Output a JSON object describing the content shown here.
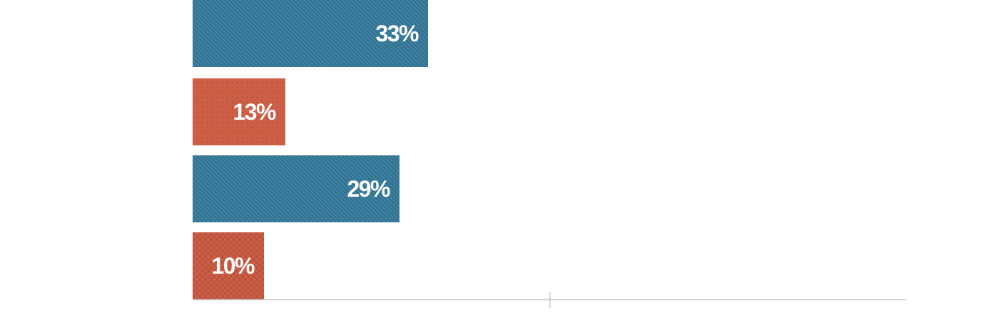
{
  "chart_data": {
    "type": "bar",
    "orientation": "horizontal",
    "categories": [
      "",
      "",
      "",
      ""
    ],
    "values": [
      33,
      13,
      29,
      10
    ],
    "value_labels": [
      "33%",
      "13%",
      "29%",
      "10%"
    ],
    "xlim": [
      0,
      100
    ],
    "title": "",
    "xlabel": "",
    "ylabel": "",
    "grid": false,
    "bars": [
      {
        "color": "#2f7394",
        "pattern": "diagonal-lines"
      },
      {
        "color": "#cd5f47",
        "pattern": "dots"
      },
      {
        "color": "#2f7394",
        "pattern": "diagonal-lines"
      },
      {
        "color": "#cd5f47",
        "pattern": "crosshatch"
      }
    ]
  },
  "colors": {
    "blue": "#2f7394",
    "orange": "#cd5f47",
    "axis": "#c9c9c9"
  }
}
